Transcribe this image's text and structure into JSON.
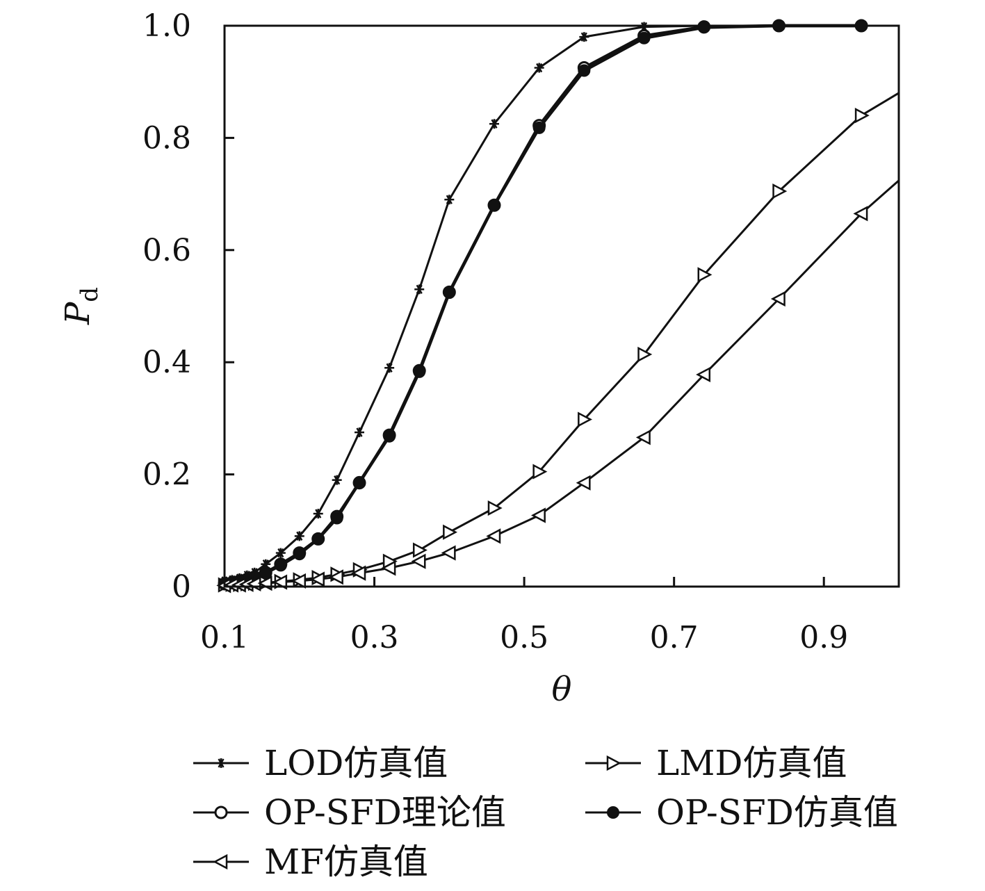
{
  "chart_data": {
    "type": "line",
    "xlabel": "θ",
    "ylabel": "P",
    "ylabel_sub": "d",
    "xlim": [
      0.1,
      1.0
    ],
    "ylim": [
      0,
      1.0
    ],
    "xticks": [
      0.1,
      0.3,
      0.5,
      0.7,
      0.9
    ],
    "xtick_labels": [
      "0.1",
      "0.3",
      "0.5",
      "0.7",
      "0.9"
    ],
    "yticks": [
      0,
      0.2,
      0.4,
      0.6,
      0.8,
      1.0
    ],
    "ytick_labels": [
      "0",
      "0.2",
      "0.4",
      "0.6",
      "0.8",
      "1.0"
    ],
    "grid": false,
    "legend_position": "bottom",
    "series": [
      {
        "name": "LOD仿真值",
        "marker": "asterisk",
        "x": [
          0.1,
          0.11,
          0.12,
          0.13,
          0.14,
          0.155,
          0.175,
          0.2,
          0.225,
          0.25,
          0.28,
          0.32,
          0.36,
          0.4,
          0.46,
          0.52,
          0.58,
          0.66,
          0.74,
          0.84,
          0.95
        ],
        "y": [
          0.01,
          0.012,
          0.015,
          0.02,
          0.025,
          0.04,
          0.06,
          0.09,
          0.13,
          0.19,
          0.275,
          0.39,
          0.53,
          0.69,
          0.825,
          0.925,
          0.98,
          0.998,
          1.0,
          1.0,
          1.0
        ]
      },
      {
        "name": "LMD仿真值",
        "marker": "triangle-right",
        "x": [
          0.1,
          0.11,
          0.12,
          0.13,
          0.14,
          0.155,
          0.175,
          0.2,
          0.225,
          0.25,
          0.28,
          0.32,
          0.36,
          0.4,
          0.46,
          0.52,
          0.58,
          0.66,
          0.74,
          0.84,
          0.95,
          1.0
        ],
        "y": [
          0.003,
          0.004,
          0.004,
          0.005,
          0.006,
          0.007,
          0.009,
          0.012,
          0.016,
          0.022,
          0.03,
          0.045,
          0.065,
          0.097,
          0.14,
          0.205,
          0.298,
          0.414,
          0.556,
          0.705,
          0.84,
          0.88
        ]
      },
      {
        "name": "OP-SFD理论值",
        "marker": "circle-open",
        "x": [
          0.1,
          0.11,
          0.12,
          0.13,
          0.14,
          0.155,
          0.175,
          0.2,
          0.225,
          0.25,
          0.28,
          0.32,
          0.36,
          0.4,
          0.46,
          0.52,
          0.58,
          0.66,
          0.74,
          0.84,
          0.95
        ],
        "y": [
          0.005,
          0.007,
          0.01,
          0.013,
          0.017,
          0.025,
          0.04,
          0.06,
          0.085,
          0.125,
          0.185,
          0.27,
          0.385,
          0.525,
          0.68,
          0.822,
          0.925,
          0.982,
          0.998,
          1.0,
          1.0
        ]
      },
      {
        "name": "OP-SFD仿真值",
        "marker": "circle-filled",
        "x": [
          0.1,
          0.11,
          0.12,
          0.13,
          0.14,
          0.155,
          0.175,
          0.2,
          0.225,
          0.25,
          0.28,
          0.32,
          0.36,
          0.4,
          0.46,
          0.52,
          0.58,
          0.66,
          0.74,
          0.84,
          0.95
        ],
        "y": [
          0.005,
          0.007,
          0.009,
          0.012,
          0.016,
          0.024,
          0.038,
          0.058,
          0.085,
          0.122,
          0.186,
          0.268,
          0.383,
          0.524,
          0.68,
          0.818,
          0.92,
          0.978,
          0.997,
          1.0,
          1.0
        ]
      },
      {
        "name": "MF仿真值",
        "marker": "triangle-left",
        "x": [
          0.1,
          0.11,
          0.12,
          0.13,
          0.14,
          0.155,
          0.175,
          0.2,
          0.225,
          0.25,
          0.28,
          0.32,
          0.36,
          0.4,
          0.46,
          0.52,
          0.58,
          0.66,
          0.74,
          0.84,
          0.95,
          1.0
        ],
        "y": [
          0.002,
          0.003,
          0.003,
          0.004,
          0.005,
          0.006,
          0.008,
          0.01,
          0.013,
          0.017,
          0.024,
          0.033,
          0.045,
          0.06,
          0.09,
          0.127,
          0.185,
          0.266,
          0.378,
          0.513,
          0.665,
          0.724
        ]
      }
    ]
  }
}
